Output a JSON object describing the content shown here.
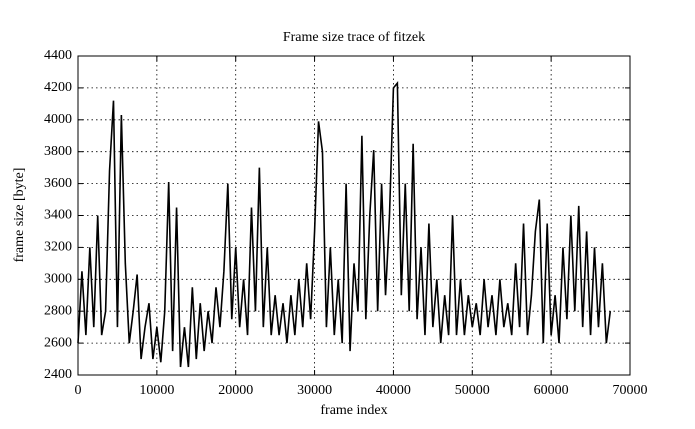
{
  "chart_data": {
    "type": "line",
    "title": "Frame size trace of fitzek",
    "x_label": "frame index",
    "y_label": "frame size [byte]",
    "xlim": [
      0,
      70000
    ],
    "xticks": [
      0,
      10000,
      20000,
      30000,
      40000,
      50000,
      60000,
      70000
    ],
    "ylim": [
      2400,
      4400
    ],
    "yticks": [
      2400,
      2600,
      2800,
      3000,
      3200,
      3400,
      3600,
      3800,
      4000,
      4200,
      4400
    ],
    "grid": true,
    "color": "#000000",
    "x": [
      0,
      500,
      1000,
      1500,
      2000,
      2500,
      3000,
      3500,
      4000,
      4500,
      5000,
      5500,
      6000,
      6500,
      7000,
      7500,
      8000,
      8500,
      9000,
      9500,
      10000,
      10500,
      11000,
      11500,
      12000,
      12500,
      13000,
      13500,
      14000,
      14500,
      15000,
      15500,
      16000,
      16500,
      17000,
      17500,
      18000,
      18500,
      19000,
      19500,
      20000,
      20500,
      21000,
      21500,
      22000,
      22500,
      23000,
      23500,
      24000,
      24500,
      25000,
      25500,
      26000,
      26500,
      27000,
      27500,
      28000,
      28500,
      29000,
      29500,
      30000,
      30500,
      31000,
      31500,
      32000,
      32500,
      33000,
      33500,
      34000,
      34500,
      35000,
      35500,
      36000,
      36500,
      37000,
      37500,
      38000,
      38500,
      39000,
      39500,
      40000,
      40500,
      41000,
      41500,
      42000,
      42500,
      43000,
      43500,
      44000,
      44500,
      45000,
      45500,
      46000,
      46500,
      47000,
      47500,
      48000,
      48500,
      49000,
      49500,
      50000,
      50500,
      51000,
      51500,
      52000,
      52500,
      53000,
      53500,
      54000,
      54500,
      55000,
      55500,
      56000,
      56500,
      57000,
      57500,
      58000,
      58500,
      59000,
      59500,
      60000,
      60500,
      61000,
      61500,
      62000,
      62500,
      63000,
      63500,
      64000,
      64500,
      65000,
      65500,
      66000,
      66500,
      67000,
      67500
    ],
    "values": [
      2600,
      3050,
      2650,
      3200,
      2700,
      3400,
      2650,
      2800,
      3680,
      4120,
      2700,
      4030,
      3100,
      2600,
      2800,
      3030,
      2500,
      2700,
      2850,
      2500,
      2700,
      2480,
      2800,
      3610,
      2550,
      3450,
      2450,
      2700,
      2450,
      2950,
      2500,
      2850,
      2550,
      2800,
      2600,
      2950,
      2700,
      3050,
      3600,
      2750,
      3200,
      2700,
      3000,
      2650,
      3450,
      2800,
      3700,
      2700,
      3200,
      2650,
      2900,
      2650,
      2850,
      2600,
      2900,
      2650,
      3000,
      2700,
      3100,
      2750,
      3300,
      3990,
      3800,
      2700,
      3200,
      2650,
      3000,
      2600,
      3600,
      2550,
      3100,
      2800,
      3900,
      2750,
      3400,
      3810,
      2800,
      3600,
      2900,
      3400,
      4200,
      4230,
      2900,
      3600,
      2800,
      3850,
      2750,
      3200,
      2650,
      3350,
      2700,
      3000,
      2600,
      2900,
      2650,
      3400,
      2650,
      3000,
      2650,
      2900,
      2700,
      2850,
      2650,
      3000,
      2700,
      2900,
      2650,
      3000,
      2700,
      2850,
      2650,
      3100,
      2700,
      3350,
      2650,
      2900,
      3300,
      3500,
      2600,
      3350,
      2650,
      2900,
      2600,
      3200,
      2750,
      3400,
      2800,
      3460,
      2700,
      3300,
      2650,
      3200,
      2700,
      3100,
      2600,
      2800
    ]
  }
}
